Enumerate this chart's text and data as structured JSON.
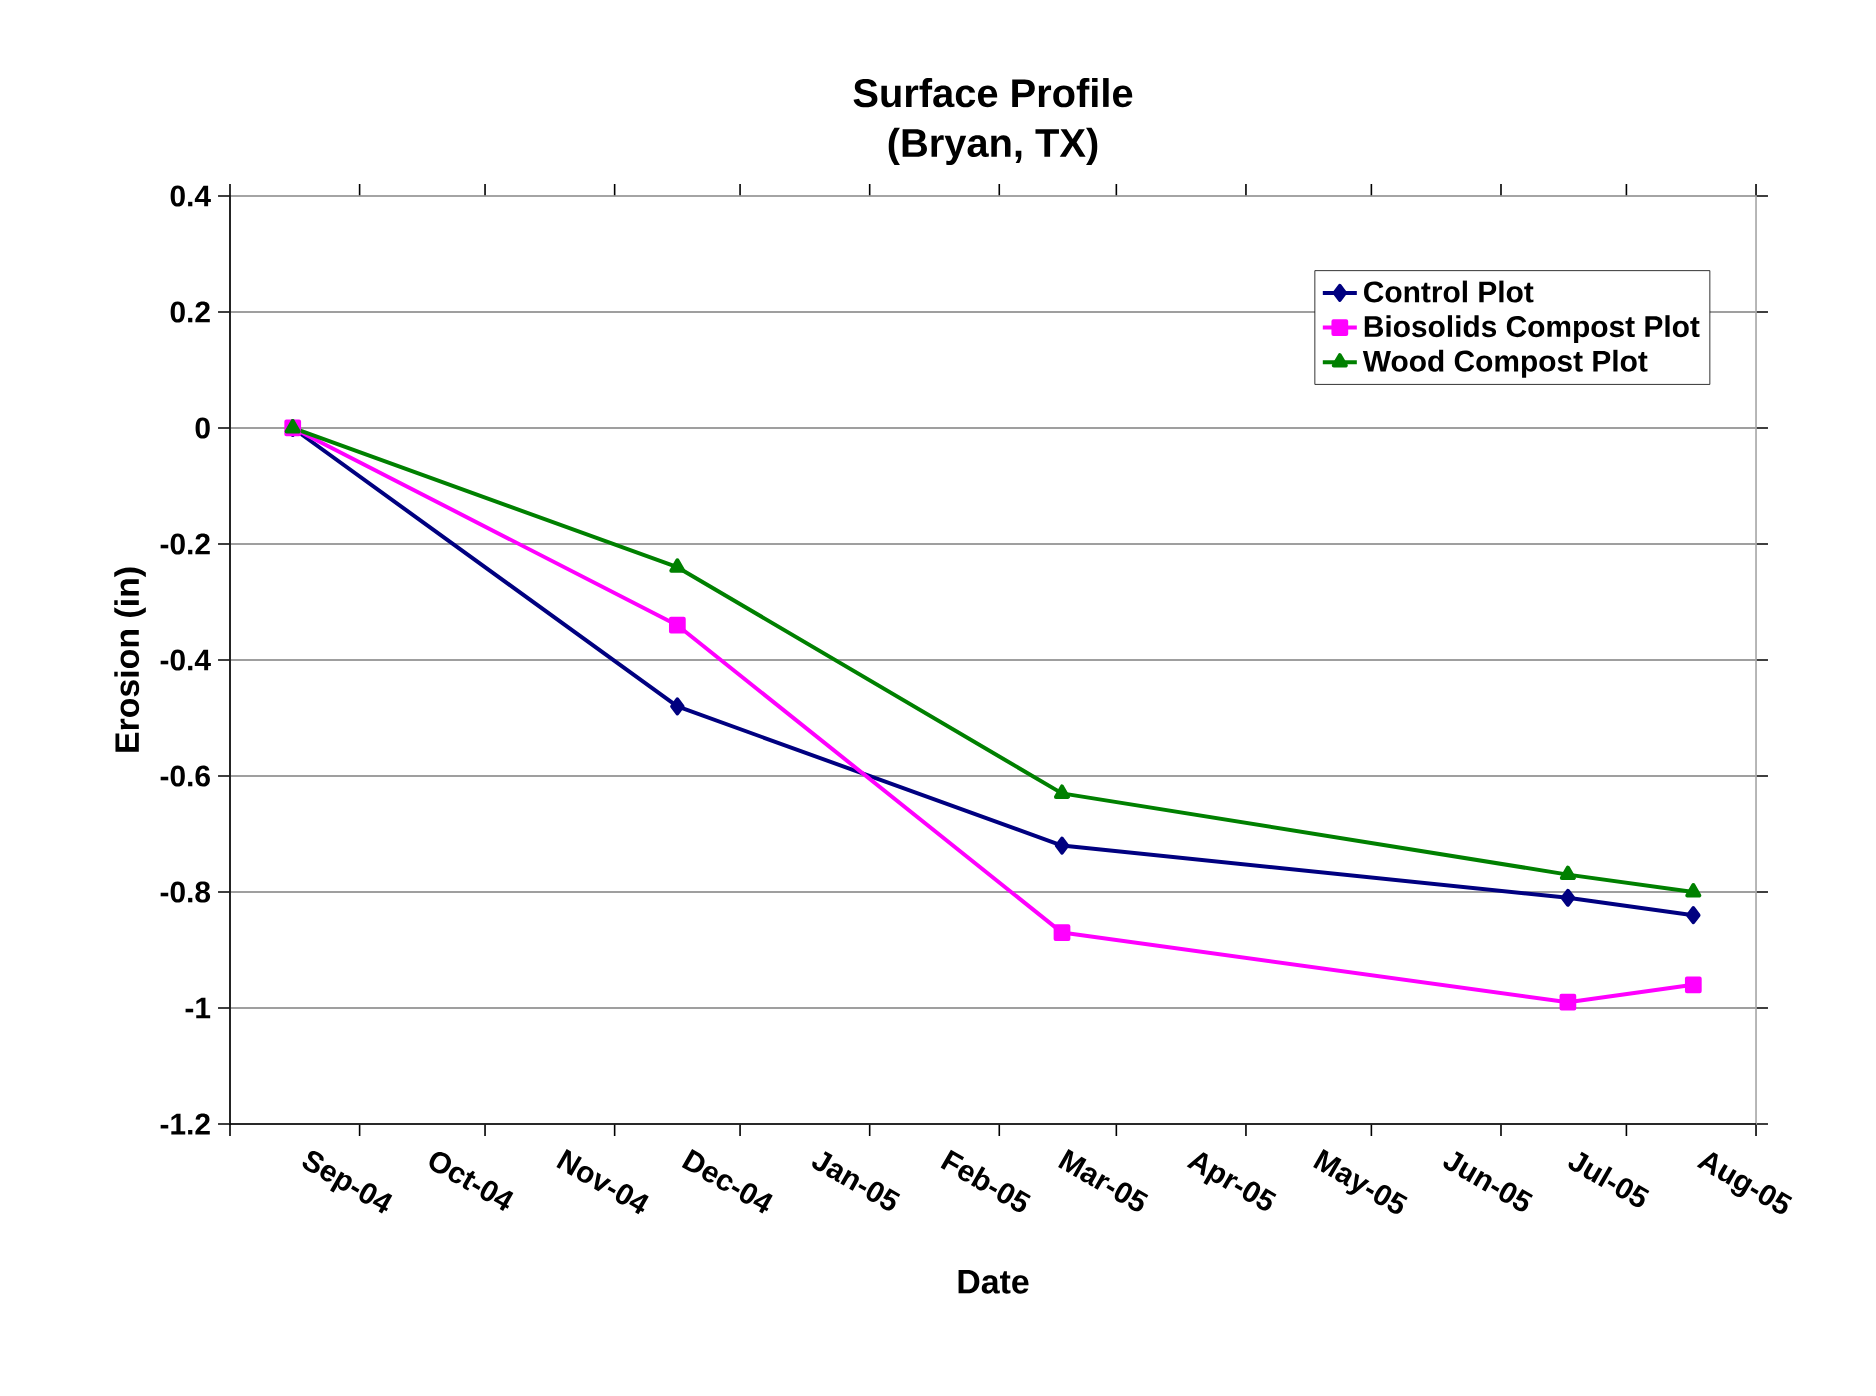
{
  "chart_data": {
    "type": "line",
    "title": "Surface Profile\n(Bryan, TX)",
    "xlabel": "Date",
    "ylabel": "Erosion (in)",
    "x": [
      "2004-08-16",
      "2004-11-16",
      "2005-02-16",
      "2005-06-17",
      "2005-07-17"
    ],
    "series": [
      {
        "name": "Control Plot",
        "color": "#000080",
        "marker": "diamond",
        "values": [
          0,
          -0.48,
          -0.72,
          -0.81,
          -0.84
        ]
      },
      {
        "name": "Biosolids Compost Plot",
        "color": "#ff00ff",
        "marker": "square",
        "values": [
          0,
          -0.34,
          -0.87,
          -0.99,
          -0.96
        ]
      },
      {
        "name": "Wood Compost Plot",
        "color": "#008000",
        "marker": "triangle",
        "values": [
          0,
          -0.24,
          -0.63,
          -0.77,
          -0.8
        ]
      }
    ],
    "xlim": [
      "2004-08-01",
      "2005-08-01"
    ],
    "xticks": [
      {
        "value": "2004-09-01",
        "label": "Sep-04"
      },
      {
        "value": "2004-10-01",
        "label": "Oct-04"
      },
      {
        "value": "2004-11-01",
        "label": "Nov-04"
      },
      {
        "value": "2004-12-01",
        "label": "Dec-04"
      },
      {
        "value": "2005-01-01",
        "label": "Jan-05"
      },
      {
        "value": "2005-02-01",
        "label": "Feb-05"
      },
      {
        "value": "2005-03-01",
        "label": "Mar-05"
      },
      {
        "value": "2005-04-01",
        "label": "Apr-05"
      },
      {
        "value": "2005-05-01",
        "label": "May-05"
      },
      {
        "value": "2005-06-01",
        "label": "Jun-05"
      },
      {
        "value": "2005-07-01",
        "label": "Jul-05"
      },
      {
        "value": "2005-08-01",
        "label": "Aug-05"
      }
    ],
    "ylim": [
      -1.2,
      0.4
    ],
    "yticks": [
      -1.2,
      -1,
      -0.8,
      -0.6,
      -0.4,
      -0.2,
      0,
      0.2,
      0.4
    ],
    "grid": "y",
    "legend": "top right",
    "line_style": "solid"
  }
}
